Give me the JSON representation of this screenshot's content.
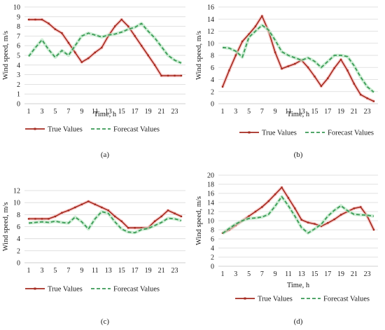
{
  "colors": {
    "true_line": "#a52a1f",
    "true_glow": "#f5b8b8",
    "forecast_line": "#3a9a55",
    "forecast_glow": "#b8e6c2"
  },
  "chart_data": [
    {
      "id": "a",
      "type": "line",
      "panel_label": "(a)",
      "xlabel": "Time, h",
      "ylabel": "Wind speed, m/s",
      "x": [
        1,
        2,
        3,
        4,
        5,
        6,
        7,
        8,
        9,
        10,
        11,
        12,
        13,
        14,
        15,
        16,
        17,
        18,
        19,
        20,
        21,
        22,
        23,
        24
      ],
      "xticks": [
        1,
        3,
        5,
        7,
        9,
        11,
        13,
        15,
        17,
        19,
        21,
        23
      ],
      "ylim": [
        0,
        10
      ],
      "yticks": [
        0,
        1,
        2,
        3,
        4,
        5,
        6,
        7,
        8,
        9,
        10
      ],
      "series": [
        {
          "name": "True Values",
          "values": [
            8.7,
            8.7,
            8.7,
            8.3,
            7.7,
            7.3,
            6.3,
            5.3,
            4.3,
            4.7,
            5.3,
            5.8,
            7.0,
            8.0,
            8.7,
            8.0,
            7.0,
            6.0,
            5.0,
            4.0,
            2.9,
            2.9,
            2.9,
            2.9
          ]
        },
        {
          "name": "Forecast Values",
          "values": [
            4.9,
            5.8,
            6.6,
            5.6,
            4.8,
            5.5,
            5.0,
            6.0,
            7.0,
            7.3,
            7.1,
            6.9,
            7.1,
            7.2,
            7.4,
            7.7,
            7.9,
            8.3,
            7.5,
            6.8,
            5.9,
            5.0,
            4.5,
            4.2
          ]
        }
      ]
    },
    {
      "id": "b",
      "type": "line",
      "panel_label": "(b)",
      "xlabel": "Time, h",
      "ylabel": "Wind speed, m/s",
      "x": [
        1,
        2,
        3,
        4,
        5,
        6,
        7,
        8,
        9,
        10,
        11,
        12,
        13,
        14,
        15,
        16,
        17,
        18,
        19,
        20,
        21,
        22,
        23,
        24
      ],
      "xticks": [
        1,
        3,
        5,
        7,
        9,
        11,
        13,
        15,
        17,
        19,
        21,
        23
      ],
      "ylim": [
        0,
        16
      ],
      "yticks": [
        0,
        2,
        4,
        6,
        8,
        10,
        12,
        14,
        16
      ],
      "series": [
        {
          "name": "True Values",
          "values": [
            2.8,
            5.5,
            8.0,
            10.3,
            11.5,
            12.8,
            14.5,
            12.0,
            8.5,
            5.8,
            6.2,
            6.6,
            7.2,
            6.0,
            4.5,
            2.9,
            4.2,
            5.9,
            7.3,
            5.5,
            3.3,
            1.5,
            0.9,
            0.4
          ]
        },
        {
          "name": "Forecast Values",
          "values": [
            9.3,
            9.2,
            8.7,
            7.7,
            11.0,
            12.0,
            13.0,
            12.2,
            10.5,
            8.6,
            8.0,
            7.6,
            7.2,
            7.6,
            7.0,
            6.0,
            7.0,
            8.0,
            8.0,
            7.8,
            6.3,
            4.4,
            2.8,
            1.9
          ]
        }
      ]
    },
    {
      "id": "c",
      "type": "line",
      "panel_label": "(c)",
      "xlabel": "",
      "ylabel": "Wind speed, m/s",
      "x": [
        1,
        2,
        3,
        4,
        5,
        6,
        7,
        8,
        9,
        10,
        11,
        12,
        13,
        14,
        15,
        16,
        17,
        18,
        19,
        20,
        21,
        22,
        23,
        24
      ],
      "xticks": [
        1,
        3,
        5,
        7,
        9,
        11,
        13,
        15,
        17,
        19,
        21,
        23
      ],
      "ylim": [
        0,
        12
      ],
      "yticks": [
        0,
        2,
        4,
        6,
        8,
        10,
        12
      ],
      "series": [
        {
          "name": "True Values",
          "values": [
            7.3,
            7.3,
            7.3,
            7.3,
            7.7,
            8.3,
            8.7,
            9.2,
            9.7,
            10.2,
            9.7,
            9.2,
            8.7,
            7.7,
            6.9,
            5.8,
            5.8,
            5.8,
            5.8,
            6.9,
            7.7,
            8.7,
            8.2,
            7.7
          ]
        },
        {
          "name": "Forecast Values",
          "values": [
            6.6,
            6.7,
            6.8,
            6.7,
            6.9,
            6.7,
            6.6,
            7.6,
            6.8,
            5.6,
            7.3,
            8.5,
            8.2,
            6.8,
            5.6,
            5.1,
            5.0,
            5.5,
            5.7,
            6.2,
            6.7,
            7.4,
            7.3,
            7.0
          ]
        }
      ]
    },
    {
      "id": "d",
      "type": "line",
      "panel_label": "(d)",
      "xlabel": "Time, h",
      "ylabel": "Wind speed, m/s",
      "x": [
        1,
        2,
        3,
        4,
        5,
        6,
        7,
        8,
        9,
        10,
        11,
        12,
        13,
        14,
        15,
        16,
        17,
        18,
        19,
        20,
        21,
        22,
        23,
        24
      ],
      "xticks": [
        1,
        3,
        5,
        7,
        9,
        11,
        13,
        15,
        17,
        19,
        21,
        23
      ],
      "ylim": [
        0,
        20
      ],
      "yticks": [
        0,
        2,
        4,
        6,
        8,
        10,
        12,
        14,
        16,
        18,
        20
      ],
      "series": [
        {
          "name": "True Values",
          "values": [
            7.3,
            8.0,
            9.0,
            10.0,
            11.0,
            12.0,
            13.0,
            14.3,
            15.8,
            17.3,
            15.0,
            12.7,
            10.2,
            9.6,
            9.3,
            8.8,
            9.5,
            10.3,
            11.3,
            12.0,
            12.7,
            13.0,
            11.0,
            8.0
          ]
        },
        {
          "name": "Forecast Values",
          "values": [
            7.2,
            8.3,
            9.3,
            10.0,
            10.5,
            10.6,
            10.8,
            11.4,
            13.2,
            15.3,
            13.3,
            11.0,
            8.5,
            7.3,
            8.2,
            9.2,
            11.0,
            12.3,
            13.3,
            12.2,
            11.4,
            11.3,
            11.2,
            11.0
          ]
        }
      ]
    }
  ]
}
